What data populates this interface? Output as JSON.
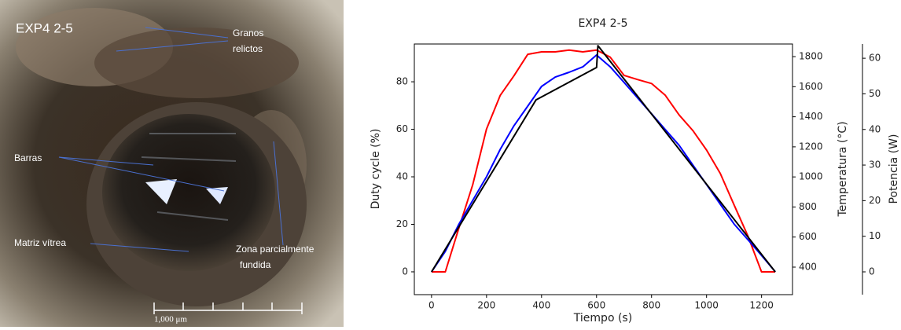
{
  "image": {
    "title": "EXP4 2-5",
    "labels": [
      [
        "Granos",
        "relictos"
      ],
      [
        "Barras"
      ],
      [
        "Matriz vítrea"
      ],
      [
        "Zona parcialmente",
        "fundida"
      ]
    ],
    "scale_bar": "1,000 μm"
  },
  "chart_data": {
    "type": "line",
    "title": "EXP4 2-5",
    "x_label": "Tiempo (s)",
    "y_label": "Duty cycle (%)",
    "y2_label": "Temperatura (°C)",
    "y3_label": "Potencia (W)",
    "xlim": [
      -62.5,
      1312.5
    ],
    "xticks": [
      0,
      200,
      400,
      600,
      800,
      1000,
      1200
    ],
    "ylim": [
      -9.6,
      95.9
    ],
    "yticks": [
      0,
      20,
      40,
      60,
      80
    ],
    "y2lim": [
      217,
      1884
    ],
    "y2ticks": [
      400,
      600,
      800,
      1000,
      1200,
      1400,
      1600,
      1800
    ],
    "y3lim": [
      -6.4,
      64
    ],
    "y3ticks": [
      0,
      10,
      20,
      30,
      40,
      50,
      60
    ],
    "x": [
      0,
      50,
      100,
      150,
      200,
      250,
      300,
      350,
      400,
      450,
      500,
      550,
      600,
      650,
      700,
      750,
      800,
      850,
      900,
      950,
      1000,
      1050,
      1100,
      1150,
      1200,
      1250
    ],
    "series": [
      {
        "color": "#ff0000",
        "axis": "y3",
        "values": [
          0,
          0,
          12.4,
          24.5,
          40.1,
          49.6,
          55.1,
          61.1,
          61.8,
          61.8,
          62.3,
          61.8,
          62.3,
          60.3,
          55.2,
          54.0,
          52.9,
          49.6,
          44.1,
          39.7,
          34.2,
          27.6,
          18.8,
          10.1,
          0,
          0
        ]
      },
      {
        "color": "#0000ff",
        "axis": "y2",
        "values": [
          369,
          505,
          687,
          844,
          1001,
          1184,
          1341,
          1471,
          1602,
          1664,
          1696,
          1732,
          1811,
          1732,
          1629,
          1524,
          1420,
          1315,
          1211,
          1079,
          949,
          818,
          687,
          583,
          478,
          369
        ]
      },
      {
        "color": "#000000",
        "axis": "y",
        "x": [
          0,
          380,
          600,
          605,
          1250
        ],
        "values": [
          0,
          72.4,
          86,
          95.2,
          0
        ]
      }
    ]
  }
}
